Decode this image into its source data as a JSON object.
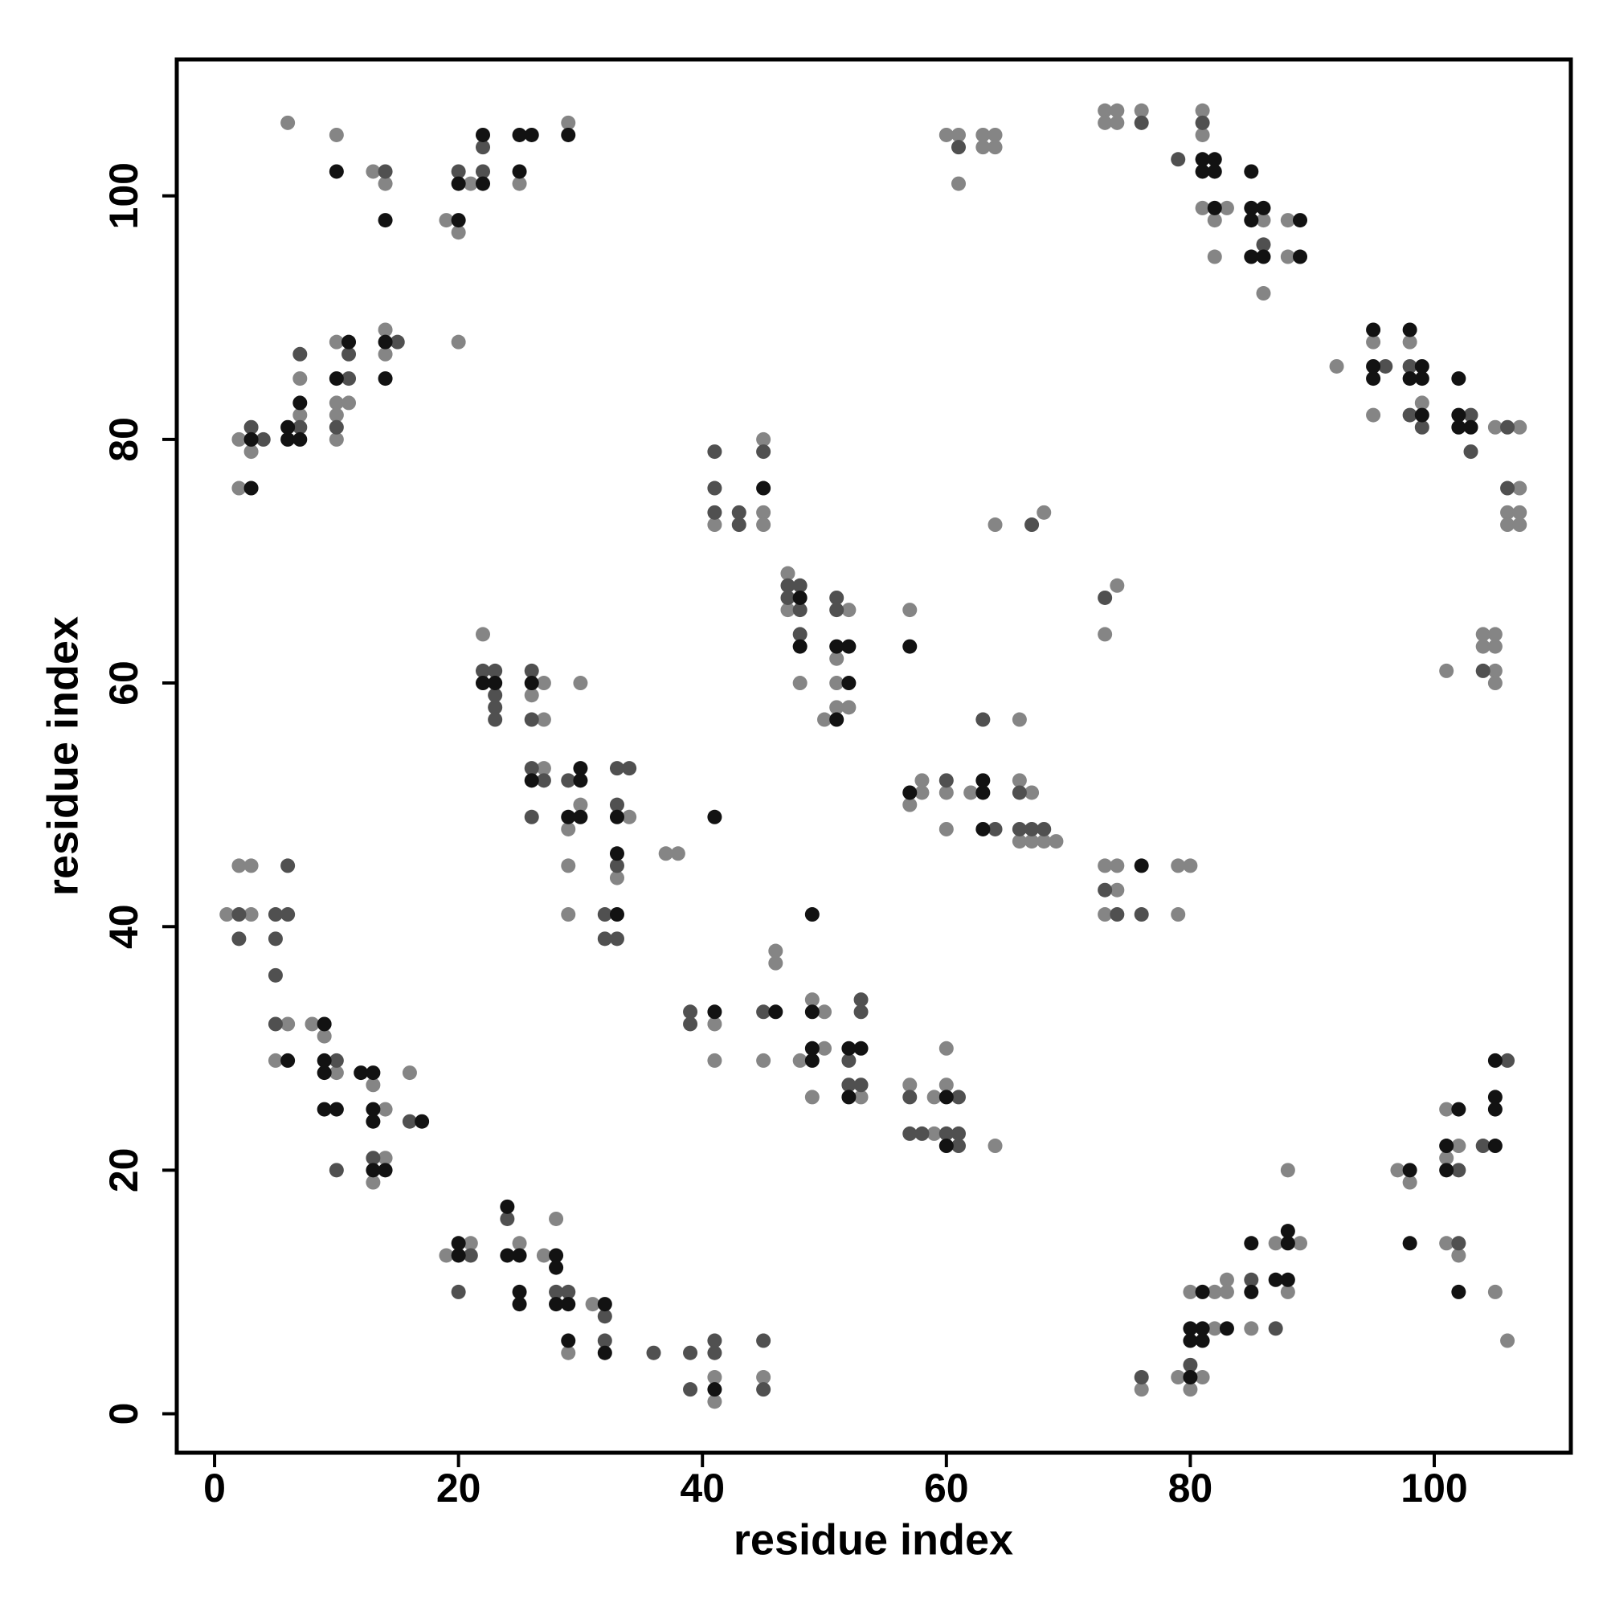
{
  "chart_data": {
    "type": "scatter",
    "x_label": "residue index",
    "y_label": "residue index",
    "xlim": [
      -3.1,
      111.2
    ],
    "ylim": [
      -3.2,
      111.2
    ],
    "xticks": [
      0,
      20,
      40,
      60,
      80,
      100
    ],
    "yticks": [
      0,
      20,
      40,
      60,
      80,
      100
    ],
    "series": [
      {
        "color": "#858585",
        "x": [
          6,
          10,
          13,
          14,
          19,
          20,
          20,
          21,
          25,
          29,
          2,
          3,
          2,
          7,
          7,
          10,
          10,
          10,
          10,
          11,
          14,
          14,
          1,
          2,
          3,
          3,
          6,
          5,
          8,
          9,
          10,
          13,
          14,
          14,
          13,
          16,
          19,
          21,
          25,
          27,
          28,
          29,
          31,
          41,
          41,
          45,
          22,
          27,
          26,
          27,
          27,
          30,
          30,
          29,
          29,
          29,
          34,
          33,
          37,
          38,
          41,
          45,
          45,
          45,
          47,
          47,
          48,
          52,
          51,
          51,
          51,
          52,
          50,
          57,
          41,
          41,
          45,
          46,
          46,
          49,
          50,
          50,
          48,
          49,
          53,
          57,
          59,
          60,
          59,
          60,
          64,
          57,
          58,
          58,
          60,
          60,
          62,
          66,
          66,
          67,
          66,
          67,
          68,
          69,
          60,
          61,
          61,
          63,
          64,
          63,
          64,
          64,
          68,
          74,
          73,
          73,
          74,
          74,
          73,
          79,
          80,
          79,
          73,
          74,
          73,
          74,
          76,
          81,
          81,
          81,
          83,
          82,
          82,
          86,
          86,
          88,
          88,
          92,
          95,
          95,
          98,
          99,
          105,
          107,
          107,
          106,
          107,
          106,
          107,
          101,
          104,
          105,
          104,
          105,
          105,
          105,
          76,
          79,
          81,
          80,
          80,
          82,
          83,
          83,
          82,
          85,
          87,
          89,
          88,
          88,
          97,
          98,
          101,
          101,
          102,
          101,
          102,
          105,
          106
        ],
        "y": [
          106,
          105,
          102,
          101,
          98,
          97,
          88,
          101,
          101,
          106,
          80,
          79,
          76,
          82,
          85,
          88,
          83,
          82,
          80,
          83,
          89,
          87,
          41,
          45,
          45,
          41,
          32,
          29,
          32,
          31,
          28,
          27,
          25,
          21,
          19,
          28,
          13,
          14,
          14,
          13,
          16,
          5,
          9,
          3,
          1,
          3,
          64,
          60,
          59,
          57,
          53,
          60,
          50,
          48,
          45,
          41,
          49,
          44,
          46,
          46,
          73,
          80,
          74,
          73,
          69,
          66,
          60,
          66,
          62,
          60,
          58,
          58,
          57,
          66,
          32,
          29,
          29,
          38,
          37,
          34,
          33,
          30,
          29,
          26,
          26,
          27,
          23,
          27,
          26,
          30,
          22,
          50,
          52,
          51,
          51,
          48,
          51,
          57,
          52,
          51,
          47,
          47,
          47,
          47,
          105,
          105,
          101,
          105,
          105,
          104,
          104,
          73,
          74,
          68,
          64,
          45,
          45,
          43,
          41,
          45,
          45,
          41,
          107,
          107,
          106,
          106,
          107,
          107,
          105,
          99,
          99,
          98,
          95,
          98,
          92,
          98,
          95,
          86,
          88,
          82,
          88,
          83,
          81,
          81,
          76,
          74,
          74,
          73,
          73,
          61,
          64,
          64,
          63,
          63,
          61,
          60,
          2,
          3,
          3,
          2,
          10,
          10,
          11,
          10,
          7,
          7,
          14,
          14,
          10,
          20,
          20,
          19,
          25,
          21,
          22,
          14,
          13,
          10,
          6
        ]
      },
      {
        "color": "#505050",
        "x": [
          14,
          20,
          22,
          22,
          3,
          4,
          7,
          7,
          10,
          11,
          11,
          15,
          2,
          2,
          5,
          6,
          6,
          5,
          5,
          5,
          10,
          10,
          13,
          16,
          21,
          20,
          24,
          28,
          29,
          32,
          32,
          36,
          39,
          39,
          41,
          41,
          45,
          45,
          22,
          23,
          23,
          23,
          23,
          26,
          26,
          26,
          27,
          26,
          29,
          33,
          34,
          33,
          33,
          32,
          32,
          33,
          41,
          41,
          41,
          43,
          43,
          45,
          47,
          48,
          47,
          48,
          48,
          51,
          51,
          39,
          39,
          45,
          52,
          53,
          53,
          52,
          53,
          57,
          57,
          58,
          60,
          61,
          61,
          61,
          60,
          64,
          63,
          66,
          66,
          67,
          68,
          61,
          67,
          73,
          73,
          74,
          76,
          76,
          79,
          81,
          86,
          96,
          98,
          98,
          99,
          103,
          103,
          106,
          106,
          104,
          76,
          80,
          85,
          87,
          102,
          102,
          104,
          106
        ],
        "y": [
          102,
          102,
          102,
          104,
          81,
          80,
          81,
          87,
          81,
          87,
          85,
          88,
          41,
          39,
          41,
          41,
          45,
          39,
          36,
          32,
          29,
          20,
          21,
          24,
          13,
          10,
          16,
          10,
          10,
          8,
          6,
          5,
          5,
          2,
          6,
          5,
          6,
          2,
          61,
          61,
          59,
          58,
          57,
          61,
          57,
          53,
          52,
          49,
          52,
          53,
          53,
          50,
          45,
          41,
          39,
          39,
          79,
          76,
          74,
          74,
          73,
          79,
          68,
          68,
          67,
          66,
          64,
          67,
          66,
          33,
          32,
          33,
          29,
          34,
          33,
          27,
          27,
          26,
          23,
          23,
          23,
          23,
          22,
          26,
          52,
          48,
          57,
          51,
          48,
          48,
          48,
          104,
          73,
          67,
          43,
          41,
          41,
          106,
          103,
          106,
          96,
          86,
          86,
          82,
          81,
          82,
          79,
          81,
          76,
          61,
          3,
          4,
          11,
          7,
          20,
          14,
          22,
          29
        ]
      },
      {
        "color": "#121212",
        "x": [
          10,
          14,
          20,
          20,
          22,
          22,
          25,
          26,
          25,
          29,
          3,
          3,
          6,
          6,
          7,
          7,
          10,
          11,
          14,
          14,
          6,
          9,
          9,
          9,
          9,
          10,
          12,
          13,
          13,
          13,
          13,
          14,
          17,
          20,
          20,
          24,
          24,
          25,
          25,
          25,
          28,
          28,
          28,
          29,
          29,
          32,
          32,
          41,
          22,
          23,
          26,
          26,
          30,
          30,
          29,
          30,
          33,
          33,
          33,
          45,
          48,
          48,
          51,
          52,
          52,
          51,
          57,
          41,
          41,
          46,
          49,
          49,
          49,
          49,
          52,
          53,
          52,
          60,
          60,
          57,
          63,
          63,
          63,
          76,
          81,
          82,
          81,
          82,
          82,
          85,
          85,
          86,
          85,
          85,
          86,
          89,
          89,
          95,
          95,
          95,
          98,
          99,
          98,
          99,
          99,
          102,
          102,
          102,
          103,
          80,
          81,
          80,
          81,
          83,
          80,
          81,
          85,
          85,
          87,
          88,
          88,
          88,
          98,
          98,
          101,
          101,
          102,
          102,
          105,
          105,
          105,
          105
        ],
        "y": [
          102,
          98,
          98,
          101,
          101,
          105,
          105,
          105,
          102,
          105,
          80,
          76,
          81,
          80,
          80,
          83,
          85,
          88,
          88,
          85,
          29,
          32,
          29,
          28,
          25,
          25,
          28,
          28,
          25,
          24,
          20,
          20,
          24,
          14,
          13,
          17,
          13,
          13,
          10,
          9,
          13,
          12,
          9,
          9,
          6,
          9,
          5,
          2,
          60,
          60,
          60,
          52,
          53,
          52,
          49,
          49,
          49,
          46,
          41,
          76,
          67,
          63,
          63,
          63,
          60,
          57,
          63,
          49,
          33,
          33,
          41,
          33,
          30,
          29,
          30,
          30,
          26,
          22,
          26,
          51,
          52,
          51,
          48,
          45,
          103,
          103,
          102,
          102,
          99,
          102,
          99,
          99,
          98,
          95,
          95,
          98,
          95,
          89,
          86,
          85,
          89,
          86,
          85,
          85,
          82,
          85,
          82,
          81,
          81,
          3,
          10,
          7,
          7,
          7,
          6,
          6,
          14,
          10,
          11,
          11,
          15,
          14,
          20,
          14,
          22,
          20,
          25,
          10,
          22,
          29,
          26,
          25
        ]
      }
    ]
  }
}
